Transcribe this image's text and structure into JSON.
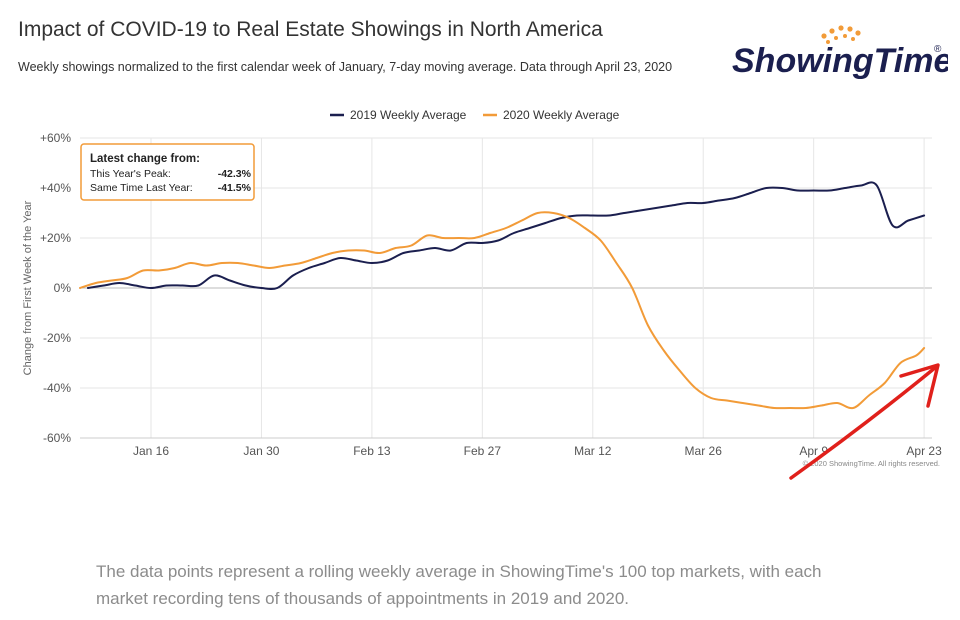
{
  "header": {
    "title": "Impact of COVID-19 to Real Estate Showings in North America",
    "subtitle": "Weekly showings normalized to the first calendar week of January, 7-day moving average. Data through April 23, 2020"
  },
  "logo": {
    "text": "ShowingTime",
    "mark": "®"
  },
  "colors": {
    "series_2019": "#1b1f4f",
    "series_2020": "#f29b38",
    "annotation_arrow": "#e0201b",
    "grid": "#e6e6e6"
  },
  "callout": {
    "title": "Latest change from:",
    "rows": [
      {
        "label": "This Year's Peak:",
        "value": "-42.3%"
      },
      {
        "label": "Same Time Last Year:",
        "value": "-41.5%"
      }
    ]
  },
  "credit": "© 2020 ShowingTime. All rights reserved.",
  "caption": "The data points represent a rolling weekly average in ShowingTime's 100 top markets, with each market recording tens of thousands of appointments in 2019 and 2020.",
  "chart_data": {
    "type": "line",
    "ylabel": "Change from First Week of the Year",
    "ylim": [
      -60,
      60
    ],
    "yticks": [
      60,
      40,
      20,
      0,
      -20,
      -40,
      -60
    ],
    "ytick_labels": [
      "+60%",
      "+40%",
      "+20%",
      "0%",
      "-20%",
      "-40%",
      "-60%"
    ],
    "xlim": [
      "2020-01-07",
      "2020-04-24"
    ],
    "xtick_dates": [
      "2020-01-16",
      "2020-01-30",
      "2020-02-13",
      "2020-02-27",
      "2020-03-12",
      "2020-03-26",
      "2020-04-09",
      "2020-04-23"
    ],
    "xtick_labels": [
      "Jan 16",
      "Jan 30",
      "Feb 13",
      "Feb 27",
      "Mar 12",
      "Mar 26",
      "Apr 9",
      "Apr 23"
    ],
    "legend_position": "top-center",
    "grid": true,
    "annotation": "red hand-drawn arrow pointing to the latest 2020 value",
    "series": [
      {
        "name": "2019 Weekly Average",
        "color": "#1b1f4f",
        "x": [
          "2020-01-08",
          "2020-01-10",
          "2020-01-12",
          "2020-01-14",
          "2020-01-16",
          "2020-01-18",
          "2020-01-20",
          "2020-01-22",
          "2020-01-24",
          "2020-01-26",
          "2020-01-28",
          "2020-01-30",
          "2020-02-01",
          "2020-02-03",
          "2020-02-05",
          "2020-02-07",
          "2020-02-09",
          "2020-02-11",
          "2020-02-13",
          "2020-02-15",
          "2020-02-17",
          "2020-02-19",
          "2020-02-21",
          "2020-02-23",
          "2020-02-25",
          "2020-02-27",
          "2020-02-29",
          "2020-03-02",
          "2020-03-04",
          "2020-03-06",
          "2020-03-08",
          "2020-03-10",
          "2020-03-12",
          "2020-03-14",
          "2020-03-16",
          "2020-03-18",
          "2020-03-20",
          "2020-03-22",
          "2020-03-24",
          "2020-03-26",
          "2020-03-28",
          "2020-03-30",
          "2020-04-01",
          "2020-04-03",
          "2020-04-05",
          "2020-04-07",
          "2020-04-09",
          "2020-04-11",
          "2020-04-13",
          "2020-04-15",
          "2020-04-17",
          "2020-04-19",
          "2020-04-21",
          "2020-04-23"
        ],
        "values": [
          0,
          1,
          2,
          1,
          0,
          1,
          1,
          1,
          5,
          3,
          1,
          0,
          0,
          5,
          8,
          10,
          12,
          11,
          10,
          11,
          14,
          15,
          16,
          15,
          18,
          18,
          19,
          22,
          24,
          26,
          28,
          29,
          29,
          29,
          30,
          31,
          32,
          33,
          34,
          34,
          35,
          36,
          38,
          40,
          40,
          39,
          39,
          39,
          40,
          41,
          41,
          25,
          27,
          29
        ]
      },
      {
        "name": "2020 Weekly Average",
        "color": "#f29b38",
        "x": [
          "2020-01-07",
          "2020-01-09",
          "2020-01-11",
          "2020-01-13",
          "2020-01-15",
          "2020-01-17",
          "2020-01-19",
          "2020-01-21",
          "2020-01-23",
          "2020-01-25",
          "2020-01-27",
          "2020-01-29",
          "2020-01-31",
          "2020-02-02",
          "2020-02-04",
          "2020-02-06",
          "2020-02-08",
          "2020-02-10",
          "2020-02-12",
          "2020-02-14",
          "2020-02-16",
          "2020-02-18",
          "2020-02-20",
          "2020-02-22",
          "2020-02-24",
          "2020-02-26",
          "2020-02-28",
          "2020-03-01",
          "2020-03-03",
          "2020-03-05",
          "2020-03-07",
          "2020-03-09",
          "2020-03-11",
          "2020-03-13",
          "2020-03-15",
          "2020-03-17",
          "2020-03-19",
          "2020-03-21",
          "2020-03-23",
          "2020-03-25",
          "2020-03-27",
          "2020-03-29",
          "2020-03-31",
          "2020-04-02",
          "2020-04-04",
          "2020-04-06",
          "2020-04-08",
          "2020-04-10",
          "2020-04-12",
          "2020-04-14",
          "2020-04-16",
          "2020-04-18",
          "2020-04-20",
          "2020-04-22",
          "2020-04-23"
        ],
        "values": [
          0,
          2,
          3,
          4,
          7,
          7,
          8,
          10,
          9,
          10,
          10,
          9,
          8,
          9,
          10,
          12,
          14,
          15,
          15,
          14,
          16,
          17,
          21,
          20,
          20,
          20,
          22,
          24,
          27,
          30,
          30,
          28,
          24,
          19,
          10,
          0,
          -15,
          -25,
          -33,
          -40,
          -44,
          -45,
          -46,
          -47,
          -48,
          -48,
          -48,
          -47,
          -46,
          -48,
          -43,
          -38,
          -30,
          -27,
          -24
        ]
      }
    ]
  }
}
